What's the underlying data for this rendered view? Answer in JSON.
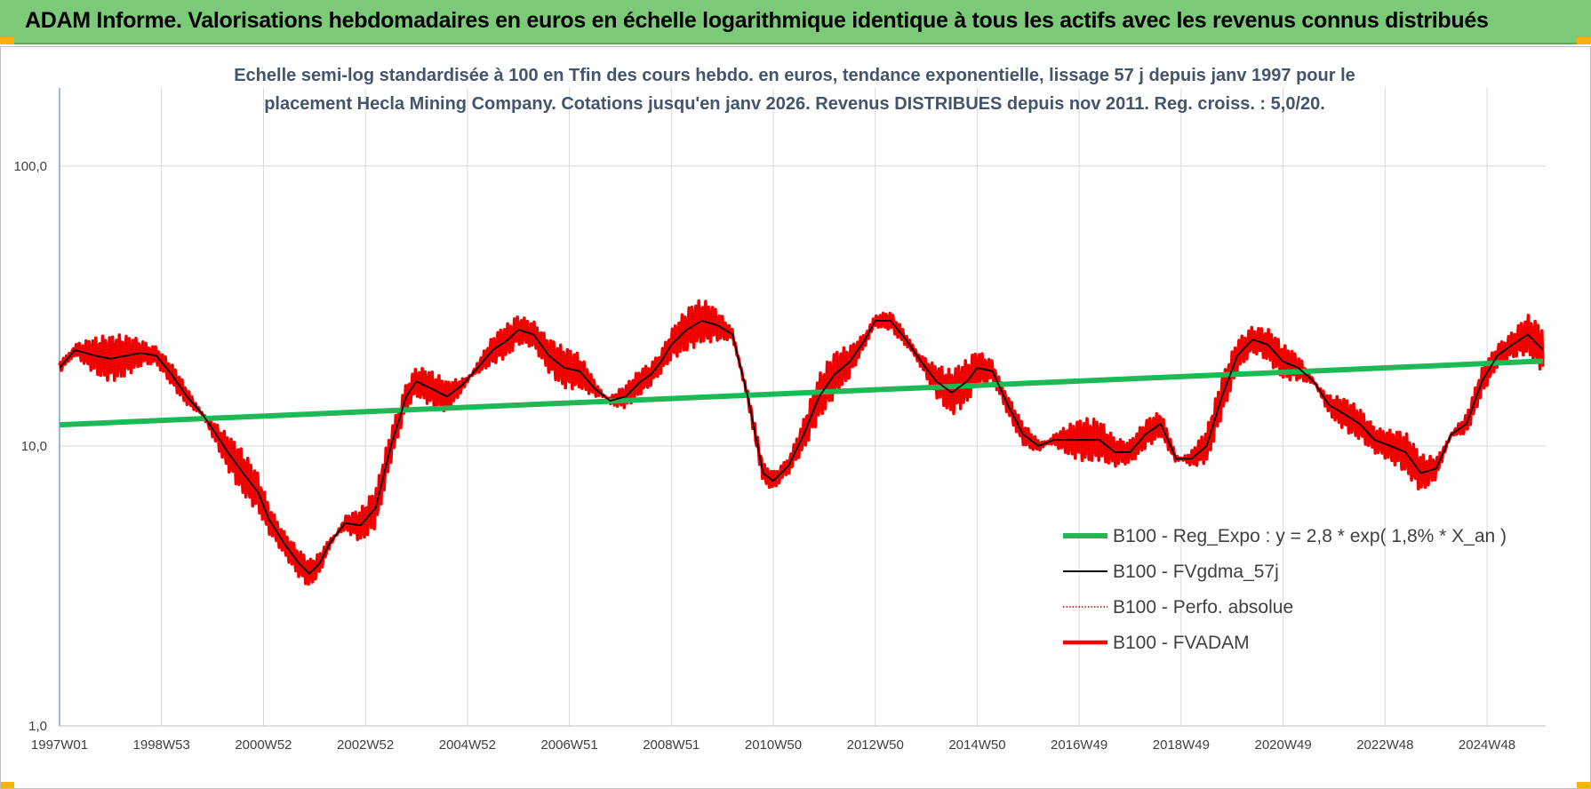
{
  "header": {
    "title": "ADAM Informe. Valorisations hebdomadaires en euros en échelle logarithmique identique à tous les actifs avec les revenus connus distribués"
  },
  "colors": {
    "header_bg": "#7dc97a",
    "regression": "#1db954",
    "smoothed": "#000000",
    "perf_absolue": "#c00000",
    "fvadam": "#ff0000"
  },
  "chart_data": {
    "type": "line",
    "title_lines": [
      "Echelle semi-log standardisée à 100 en Tfin des cours hebdo. en euros, tendance exponentielle, lissage 57 j depuis janv 1997 pour le",
      "placement Hecla Mining Company. Cotations jusqu'en janv 2026. Revenus DISTRIBUES depuis nov 2011. Reg. croiss. : 5,0/20."
    ],
    "y_scale": "log",
    "ylim": [
      1,
      190
    ],
    "y_ticks": [
      {
        "value": 1,
        "label": "1,0"
      },
      {
        "value": 10,
        "label": "10,0"
      },
      {
        "value": 100,
        "label": "100,0"
      }
    ],
    "xlim": [
      1997.0,
      2026.15
    ],
    "x_ticks": [
      {
        "value": 1997.0,
        "label": "1997W01"
      },
      {
        "value": 1999.0,
        "label": "1998W53"
      },
      {
        "value": 2001.0,
        "label": "2000W52"
      },
      {
        "value": 2003.0,
        "label": "2002W52"
      },
      {
        "value": 2005.0,
        "label": "2004W52"
      },
      {
        "value": 2007.0,
        "label": "2006W51"
      },
      {
        "value": 2009.0,
        "label": "2008W51"
      },
      {
        "value": 2011.0,
        "label": "2010W50"
      },
      {
        "value": 2013.0,
        "label": "2012W50"
      },
      {
        "value": 2015.0,
        "label": "2014W50"
      },
      {
        "value": 2017.0,
        "label": "2016W49"
      },
      {
        "value": 2019.0,
        "label": "2018W49"
      },
      {
        "value": 2021.0,
        "label": "2020W49"
      },
      {
        "value": 2023.0,
        "label": "2022W48"
      },
      {
        "value": 2025.0,
        "label": "2024W48"
      }
    ],
    "grid": true,
    "legend_position": "right-lower",
    "series": [
      {
        "name": "B100 - Reg_Expo : y = 2,8 * exp( 1,8% *  X_an )",
        "style": "regression",
        "x": [
          1997.0,
          2026.1
        ],
        "y": [
          11.9,
          20.1
        ]
      },
      {
        "name": "B100 - FVgdma_57j",
        "style": "smoothed",
        "x": [
          1997.0,
          1997.3,
          1997.7,
          1998.0,
          1998.3,
          1998.6,
          1998.9,
          1999.2,
          1999.5,
          1999.8,
          2000.0,
          2000.3,
          2000.6,
          2000.9,
          2001.1,
          2001.4,
          2001.7,
          2001.9,
          2002.1,
          2002.3,
          2002.6,
          2002.9,
          2003.2,
          2003.5,
          2003.8,
          2004.0,
          2004.3,
          2004.6,
          2004.9,
          2005.2,
          2005.5,
          2005.8,
          2006.0,
          2006.3,
          2006.6,
          2006.9,
          2007.2,
          2007.5,
          2007.8,
          2008.1,
          2008.4,
          2008.6,
          2008.8,
          2009.0,
          2009.3,
          2009.6,
          2009.9,
          2010.2,
          2010.5,
          2010.8,
          2011.0,
          2011.3,
          2011.6,
          2011.9,
          2012.2,
          2012.5,
          2012.8,
          2013.0,
          2013.3,
          2013.6,
          2013.9,
          2014.2,
          2014.5,
          2014.8,
          2015.0,
          2015.3,
          2015.6,
          2015.9,
          2016.2,
          2016.5,
          2016.8,
          2017.1,
          2017.4,
          2017.7,
          2018.0,
          2018.3,
          2018.6,
          2018.9,
          2019.2,
          2019.5,
          2019.8,
          2020.1,
          2020.4,
          2020.7,
          2021.0,
          2021.3,
          2021.6,
          2021.9,
          2022.2,
          2022.5,
          2022.8,
          2023.1,
          2023.4,
          2023.7,
          2024.0,
          2024.3,
          2024.6,
          2024.9,
          2025.2,
          2025.5,
          2025.8,
          2026.1
        ],
        "y": [
          19,
          22,
          21,
          20.5,
          21,
          21.5,
          21,
          18,
          15,
          13,
          11.5,
          9.5,
          8,
          6.8,
          5.5,
          4.5,
          3.8,
          3.5,
          3.8,
          4.5,
          5.3,
          5.2,
          6,
          10,
          15,
          17,
          16,
          15,
          16.5,
          19,
          22,
          24,
          26,
          25,
          21,
          19,
          18.5,
          16,
          14.5,
          15,
          17,
          18,
          20,
          23,
          26,
          28,
          27,
          25,
          15,
          8,
          7.5,
          8.5,
          11,
          15,
          18,
          20,
          24,
          28,
          28,
          24,
          20,
          17,
          15.5,
          17,
          19,
          18.5,
          14,
          11,
          10,
          10.5,
          10.5,
          10.5,
          10.5,
          9.5,
          9.5,
          11,
          12,
          9,
          9,
          10,
          15,
          21,
          24,
          23,
          20,
          19,
          17,
          14,
          13,
          12,
          10.5,
          10,
          9.5,
          8,
          8.3,
          11,
          12,
          17,
          21,
          23,
          25,
          22
        ],
        "x_note": ""
      },
      {
        "name": "B100 - Perfo. absolue",
        "style": "dotted"
      },
      {
        "name": "B100 - FVADAM",
        "style": "main"
      }
    ]
  }
}
